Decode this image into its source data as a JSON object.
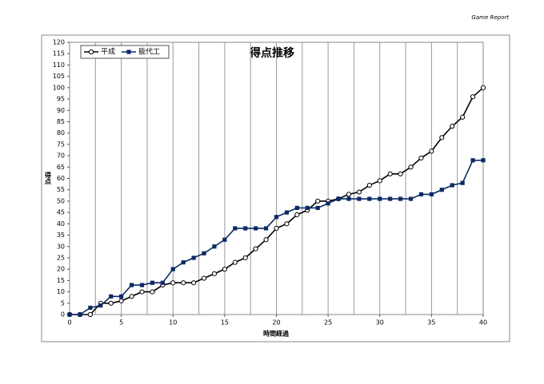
{
  "header": "Game Report",
  "chart_data": {
    "type": "line",
    "title": "得点推移",
    "x_label": "時間経過",
    "y_label": "得点",
    "x": [
      0,
      1,
      2,
      3,
      4,
      5,
      6,
      7,
      8,
      9,
      10,
      11,
      12,
      13,
      14,
      15,
      16,
      17,
      18,
      19,
      20,
      21,
      22,
      23,
      24,
      25,
      26,
      27,
      28,
      29,
      30,
      31,
      32,
      33,
      34,
      35,
      36,
      37,
      38,
      39,
      40
    ],
    "series": [
      {
        "name": "平成",
        "color": "#000000",
        "marker": "circle",
        "values": [
          0,
          0,
          0,
          5,
          5,
          6,
          8,
          10,
          10,
          13,
          14,
          14,
          14,
          16,
          18,
          20,
          23,
          25,
          29,
          33,
          38,
          40,
          44,
          46,
          50,
          50,
          51,
          53,
          54,
          57,
          59,
          62,
          62,
          65,
          69,
          72,
          78,
          83,
          87,
          96,
          100
        ]
      },
      {
        "name": "能代工",
        "color": "#0d2a66",
        "marker": "square",
        "values": [
          0,
          0,
          3,
          4,
          8,
          8,
          13,
          13,
          14,
          14,
          20,
          23,
          25,
          27,
          30,
          33,
          38,
          38,
          38,
          38,
          43,
          45,
          47,
          47,
          47,
          49,
          51,
          51,
          51,
          51,
          51,
          51,
          51,
          51,
          53,
          53,
          55,
          57,
          58,
          68,
          68
        ]
      }
    ],
    "xlim": [
      0,
      40
    ],
    "xticks": [
      0,
      5,
      10,
      15,
      20,
      25,
      30,
      35,
      40
    ],
    "x_gridlines": [
      2.5,
      5,
      7.5,
      10,
      12.5,
      15,
      17.5,
      20,
      22.5,
      25,
      27.5,
      30,
      32.5,
      35,
      37.5
    ],
    "ylim": [
      0,
      120
    ],
    "yticks": [
      0,
      5,
      10,
      15,
      20,
      25,
      30,
      35,
      40,
      45,
      50,
      55,
      60,
      65,
      70,
      75,
      80,
      85,
      90,
      95,
      100,
      105,
      110,
      115,
      120
    ],
    "legend": "top-left"
  }
}
